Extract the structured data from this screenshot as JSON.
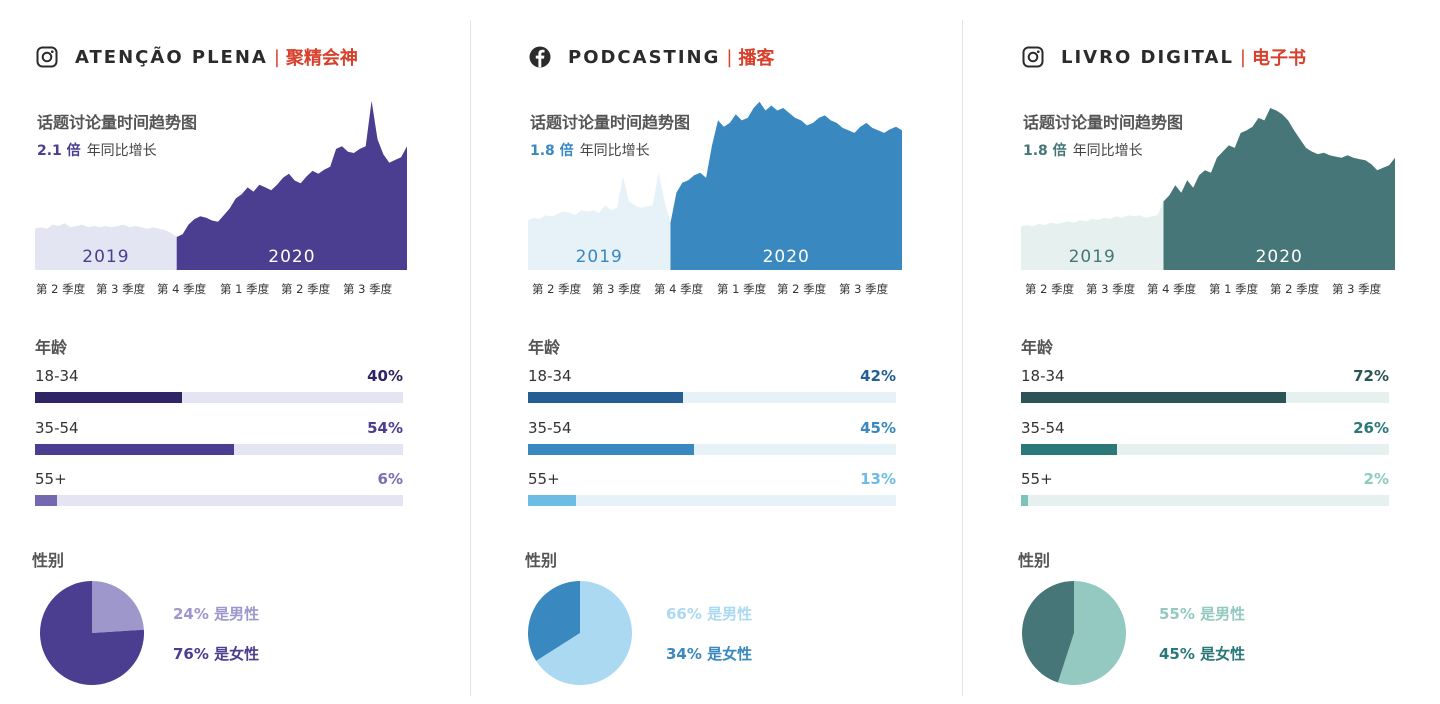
{
  "panels": [
    {
      "network": "instagram",
      "icon": "instagram-icon",
      "title": "ATENÇÃO PLENA",
      "title_zh": "聚精会神",
      "separator": "|",
      "trend_title": "话题讨论量时间趋势图",
      "growth_multiplier": "2.1 倍",
      "growth_text": "年同比增长",
      "colors": {
        "accent": "#4b3d8f",
        "light": "#e4e5f2",
        "bar_dark": "#2f2566",
        "bar_mid": "#4b3d8f",
        "bar_light": "#7468b0",
        "pct_light": "#7a6fb5",
        "pie_light": "#9d97cc"
      },
      "age_title": "年龄",
      "ages": [
        {
          "label": "18-34",
          "pct": "40%",
          "value": 40
        },
        {
          "label": "35-54",
          "pct": "54%",
          "value": 54
        },
        {
          "label": "55+",
          "pct": "6%",
          "value": 6
        }
      ],
      "gender_title": "性别",
      "gender": {
        "male_pct": 24,
        "female_pct": 76,
        "male_label": "24% 是男性",
        "female_label": "76% 是女性"
      }
    },
    {
      "network": "facebook",
      "icon": "facebook-icon",
      "title": "PODCASTING",
      "title_zh": "播客",
      "separator": "|",
      "trend_title": "话题讨论量时间趋势图",
      "growth_multiplier": "1.8 倍",
      "growth_text": "年同比增长",
      "colors": {
        "accent": "#3a88c0",
        "light": "#e6f1f8",
        "bar_dark": "#245f93",
        "bar_mid": "#3a88c0",
        "bar_light": "#6dbce6",
        "pct_light": "#6dbce6",
        "pie_light": "#abd9f2"
      },
      "age_title": "年龄",
      "ages": [
        {
          "label": "18-34",
          "pct": "42%",
          "value": 42
        },
        {
          "label": "35-54",
          "pct": "45%",
          "value": 45
        },
        {
          "label": "55+",
          "pct": "13%",
          "value": 13
        }
      ],
      "gender_title": "性别",
      "gender": {
        "male_pct": 66,
        "female_pct": 34,
        "male_label": "66% 是男性",
        "female_label": "34% 是女性"
      }
    },
    {
      "network": "instagram",
      "icon": "instagram-icon",
      "title": "LIVRO DIGITAL",
      "title_zh": "电子书",
      "separator": "|",
      "trend_title": "话题讨论量时间趋势图",
      "growth_multiplier": "1.8 倍",
      "growth_text": "年同比增长",
      "colors": {
        "accent": "#467677",
        "light": "#e6f1ef",
        "bar_dark": "#2c5456",
        "bar_mid": "#2b7878",
        "bar_light": "#7cc4b8",
        "pct_light": "#8cccc0",
        "pie_light": "#93c9c0"
      },
      "age_title": "年龄",
      "ages": [
        {
          "label": "18-34",
          "pct": "72%",
          "value": 72
        },
        {
          "label": "35-54",
          "pct": "26%",
          "value": 26
        },
        {
          "label": "55+",
          "pct": "2%",
          "value": 2
        }
      ],
      "gender_title": "性别",
      "gender": {
        "male_pct": 55,
        "female_pct": 45,
        "male_label": "55% 是男性",
        "female_label": "45% 是女性"
      }
    }
  ],
  "chart_data": [
    {
      "type": "area",
      "x_tick_labels": [
        "第 2 季度",
        "第 3 季度",
        "第 4 季度",
        "第 1 季度",
        "第 2 季度",
        "第 3 季度"
      ],
      "period_labels": [
        "2019",
        "2020"
      ],
      "y": [
        30,
        31,
        30,
        33,
        32,
        34,
        31,
        32,
        33,
        31,
        32,
        31,
        32,
        31,
        32,
        33,
        31,
        32,
        31,
        30,
        31,
        30,
        29,
        27,
        24,
        26,
        33,
        37,
        39,
        38,
        36,
        35,
        40,
        45,
        52,
        55,
        60,
        57,
        62,
        60,
        58,
        62,
        67,
        70,
        65,
        63,
        68,
        72,
        70,
        73,
        75,
        88,
        90,
        86,
        85,
        88,
        90,
        123,
        95,
        84,
        78,
        80,
        82,
        90
      ],
      "split_index": 24,
      "ylim": [
        0,
        125
      ]
    },
    {
      "type": "area",
      "x_tick_labels": [
        "第 2 季度",
        "第 3 季度",
        "第 4 季度",
        "第 1 季度",
        "第 2 季度",
        "第 3 季度"
      ],
      "period_labels": [
        "2019",
        "2020"
      ],
      "y": [
        40,
        42,
        41,
        44,
        43,
        45,
        47,
        46,
        44,
        48,
        47,
        48,
        46,
        52,
        48,
        50,
        75,
        55,
        52,
        50,
        51,
        52,
        78,
        55,
        38,
        62,
        70,
        72,
        76,
        78,
        74,
        100,
        120,
        115,
        118,
        125,
        120,
        122,
        130,
        135,
        128,
        132,
        128,
        130,
        126,
        122,
        120,
        116,
        118,
        122,
        124,
        120,
        118,
        114,
        112,
        110,
        115,
        118,
        114,
        112,
        110,
        113,
        115,
        112
      ],
      "split_index": 24,
      "ylim": [
        0,
        138
      ]
    },
    {
      "type": "area",
      "x_tick_labels": [
        "第 2 季度",
        "第 3 季度",
        "第 4 季度",
        "第 1 季度",
        "第 2 季度",
        "第 3 季度"
      ],
      "period_labels": [
        "2019",
        "2020"
      ],
      "y": [
        35,
        36,
        35,
        37,
        36,
        38,
        37,
        38,
        39,
        38,
        40,
        39,
        41,
        40,
        42,
        41,
        43,
        42,
        44,
        43,
        44,
        42,
        43,
        44,
        55,
        60,
        68,
        62,
        72,
        66,
        76,
        80,
        78,
        90,
        95,
        100,
        98,
        110,
        112,
        115,
        122,
        120,
        130,
        128,
        125,
        120,
        112,
        105,
        98,
        95,
        93,
        94,
        92,
        91,
        90,
        92,
        90,
        89,
        88,
        85,
        80,
        82,
        84,
        90
      ],
      "split_index": 24,
      "ylim": [
        0,
        138
      ]
    }
  ]
}
